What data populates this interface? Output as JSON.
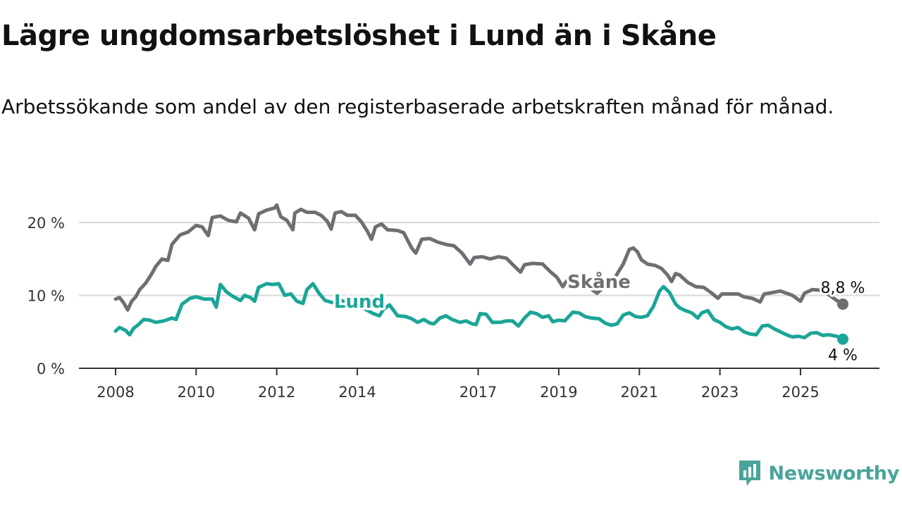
{
  "header": {
    "title": "Lägre ungdomsarbetslöshet i Lund än i Skåne",
    "subtitle": "Arbetssökande som andel av den registerbaserade arbetskraften månad för månad."
  },
  "brand": {
    "name": "Newsworthy",
    "color": "#48a49a"
  },
  "chart_data": {
    "type": "line",
    "title": "Lägre ungdomsarbetslöshet i Lund än i Skåne",
    "subtitle": "Arbetssökande som andel av den registerbaserade arbetskraften månad för månad.",
    "y_unit": "%",
    "ylim": [
      0,
      22.5
    ],
    "y_ticks": [
      0,
      10,
      20
    ],
    "y_tick_labels": [
      "0 %",
      "10 %",
      "20 %"
    ],
    "x_ticks": [
      2008,
      2010,
      2012,
      2014,
      2017,
      2019,
      2021,
      2023,
      2025
    ],
    "x_tick_labels": [
      "2008",
      "2010",
      "2012",
      "2014",
      "2017",
      "2019",
      "2021",
      "2023",
      "2025"
    ],
    "xlim": [
      2007.6,
      2026.2
    ],
    "grid": "horizontal",
    "legend": "inline labels",
    "series": [
      {
        "name": "Skåne",
        "color": "#6f6e73",
        "end_label": "8,8 %",
        "points": [
          [
            2008.0,
            9.5
          ],
          [
            2008.1,
            9.7
          ],
          [
            2008.2,
            9.0
          ],
          [
            2008.3,
            8.0
          ],
          [
            2008.4,
            9.2
          ],
          [
            2008.5,
            9.8
          ],
          [
            2008.6,
            10.8
          ],
          [
            2008.75,
            11.7
          ],
          [
            2008.9,
            13.0
          ],
          [
            2009.0,
            14.0
          ],
          [
            2009.15,
            15.0
          ],
          [
            2009.3,
            14.8
          ],
          [
            2009.4,
            17.0
          ],
          [
            2009.6,
            18.3
          ],
          [
            2009.8,
            18.7
          ],
          [
            2010.0,
            19.6
          ],
          [
            2010.15,
            19.4
          ],
          [
            2010.3,
            18.2
          ],
          [
            2010.4,
            20.7
          ],
          [
            2010.6,
            20.9
          ],
          [
            2010.8,
            20.3
          ],
          [
            2011.0,
            20.1
          ],
          [
            2011.1,
            21.3
          ],
          [
            2011.3,
            20.6
          ],
          [
            2011.45,
            19.0
          ],
          [
            2011.55,
            21.2
          ],
          [
            2011.75,
            21.7
          ],
          [
            2011.95,
            22.0
          ],
          [
            2012.0,
            22.4
          ],
          [
            2012.1,
            20.8
          ],
          [
            2012.25,
            20.3
          ],
          [
            2012.4,
            19.0
          ],
          [
            2012.45,
            21.3
          ],
          [
            2012.6,
            21.8
          ],
          [
            2012.75,
            21.4
          ],
          [
            2012.95,
            21.4
          ],
          [
            2013.1,
            21.0
          ],
          [
            2013.25,
            20.2
          ],
          [
            2013.35,
            19.1
          ],
          [
            2013.45,
            21.3
          ],
          [
            2013.6,
            21.5
          ],
          [
            2013.75,
            21.0
          ],
          [
            2013.95,
            21.0
          ],
          [
            2014.1,
            20.1
          ],
          [
            2014.25,
            18.8
          ],
          [
            2014.35,
            17.7
          ],
          [
            2014.45,
            19.4
          ],
          [
            2014.6,
            19.8
          ],
          [
            2014.75,
            19.0
          ],
          [
            2015.0,
            18.9
          ],
          [
            2015.15,
            18.6
          ],
          [
            2015.35,
            16.5
          ],
          [
            2015.45,
            15.8
          ],
          [
            2015.6,
            17.7
          ],
          [
            2015.8,
            17.8
          ],
          [
            2016.0,
            17.3
          ],
          [
            2016.2,
            17.0
          ],
          [
            2016.4,
            16.8
          ],
          [
            2016.6,
            15.8
          ],
          [
            2016.8,
            14.3
          ],
          [
            2016.9,
            15.2
          ],
          [
            2017.1,
            15.3
          ],
          [
            2017.3,
            15.0
          ],
          [
            2017.5,
            15.3
          ],
          [
            2017.7,
            15.1
          ],
          [
            2017.9,
            14.0
          ],
          [
            2018.05,
            13.2
          ],
          [
            2018.15,
            14.2
          ],
          [
            2018.35,
            14.4
          ],
          [
            2018.6,
            14.3
          ],
          [
            2018.8,
            13.2
          ],
          [
            2018.95,
            12.5
          ],
          [
            2019.1,
            11.2
          ],
          [
            2019.2,
            12.0
          ],
          [
            2019.4,
            12.6
          ],
          [
            2019.55,
            12.0
          ],
          [
            2019.75,
            11.1
          ],
          [
            2019.95,
            10.3
          ],
          [
            2020.2,
            11.5
          ],
          [
            2020.4,
            12.5
          ],
          [
            2020.6,
            14.3
          ],
          [
            2020.75,
            16.3
          ],
          [
            2020.85,
            16.5
          ],
          [
            2020.95,
            16.0
          ],
          [
            2021.05,
            14.9
          ],
          [
            2021.2,
            14.3
          ],
          [
            2021.4,
            14.1
          ],
          [
            2021.55,
            13.7
          ],
          [
            2021.7,
            12.8
          ],
          [
            2021.8,
            11.9
          ],
          [
            2021.9,
            13.0
          ],
          [
            2022.0,
            12.8
          ],
          [
            2022.2,
            11.8
          ],
          [
            2022.4,
            11.2
          ],
          [
            2022.6,
            11.1
          ],
          [
            2022.8,
            10.3
          ],
          [
            2022.95,
            9.6
          ],
          [
            2023.05,
            10.2
          ],
          [
            2023.25,
            10.2
          ],
          [
            2023.45,
            10.2
          ],
          [
            2023.6,
            9.8
          ],
          [
            2023.8,
            9.6
          ],
          [
            2024.0,
            9.1
          ],
          [
            2024.1,
            10.2
          ],
          [
            2024.3,
            10.4
          ],
          [
            2024.5,
            10.6
          ],
          [
            2024.7,
            10.2
          ],
          [
            2024.8,
            10.0
          ],
          [
            2025.0,
            9.2
          ],
          [
            2025.1,
            10.3
          ],
          [
            2025.3,
            10.8
          ],
          [
            2025.5,
            10.7
          ],
          [
            2025.7,
            10.1
          ],
          [
            2025.9,
            9.3
          ],
          [
            2026.05,
            8.8
          ]
        ]
      },
      {
        "name": "Lund",
        "color": "#1ba597",
        "end_label": "4 %",
        "points": [
          [
            2008.0,
            5.1
          ],
          [
            2008.1,
            5.6
          ],
          [
            2008.25,
            5.2
          ],
          [
            2008.35,
            4.6
          ],
          [
            2008.45,
            5.5
          ],
          [
            2008.55,
            5.9
          ],
          [
            2008.7,
            6.7
          ],
          [
            2008.85,
            6.6
          ],
          [
            2009.0,
            6.3
          ],
          [
            2009.2,
            6.5
          ],
          [
            2009.4,
            6.9
          ],
          [
            2009.5,
            6.7
          ],
          [
            2009.65,
            8.8
          ],
          [
            2009.85,
            9.6
          ],
          [
            2010.0,
            9.8
          ],
          [
            2010.2,
            9.5
          ],
          [
            2010.4,
            9.5
          ],
          [
            2010.5,
            8.4
          ],
          [
            2010.6,
            11.5
          ],
          [
            2010.75,
            10.5
          ],
          [
            2010.9,
            9.9
          ],
          [
            2011.1,
            9.3
          ],
          [
            2011.2,
            10.0
          ],
          [
            2011.35,
            9.7
          ],
          [
            2011.45,
            9.2
          ],
          [
            2011.55,
            11.1
          ],
          [
            2011.75,
            11.6
          ],
          [
            2011.9,
            11.5
          ],
          [
            2012.05,
            11.6
          ],
          [
            2012.2,
            10.0
          ],
          [
            2012.35,
            10.2
          ],
          [
            2012.5,
            9.2
          ],
          [
            2012.65,
            8.9
          ],
          [
            2012.75,
            10.8
          ],
          [
            2012.9,
            11.6
          ],
          [
            2013.05,
            10.3
          ],
          [
            2013.2,
            9.3
          ],
          [
            2013.4,
            9.0
          ],
          [
            2013.6,
            9.3
          ],
          [
            2013.8,
            8.9
          ],
          [
            2014.0,
            8.6
          ],
          [
            2014.2,
            8.1
          ],
          [
            2014.4,
            7.5
          ],
          [
            2014.55,
            7.2
          ],
          [
            2014.65,
            8.1
          ],
          [
            2014.8,
            8.7
          ],
          [
            2015.0,
            7.2
          ],
          [
            2015.2,
            7.1
          ],
          [
            2015.35,
            6.8
          ],
          [
            2015.5,
            6.3
          ],
          [
            2015.65,
            6.7
          ],
          [
            2015.8,
            6.2
          ],
          [
            2015.9,
            6.1
          ],
          [
            2016.05,
            6.9
          ],
          [
            2016.2,
            7.2
          ],
          [
            2016.35,
            6.7
          ],
          [
            2016.55,
            6.3
          ],
          [
            2016.7,
            6.5
          ],
          [
            2016.85,
            6.1
          ],
          [
            2016.95,
            6.0
          ],
          [
            2017.05,
            7.5
          ],
          [
            2017.2,
            7.4
          ],
          [
            2017.35,
            6.3
          ],
          [
            2017.55,
            6.3
          ],
          [
            2017.7,
            6.5
          ],
          [
            2017.85,
            6.5
          ],
          [
            2018.0,
            5.8
          ],
          [
            2018.15,
            6.9
          ],
          [
            2018.3,
            7.7
          ],
          [
            2018.45,
            7.5
          ],
          [
            2018.6,
            7.0
          ],
          [
            2018.75,
            7.2
          ],
          [
            2018.85,
            6.4
          ],
          [
            2019.0,
            6.6
          ],
          [
            2019.15,
            6.5
          ],
          [
            2019.35,
            7.7
          ],
          [
            2019.5,
            7.6
          ],
          [
            2019.65,
            7.1
          ],
          [
            2019.8,
            6.9
          ],
          [
            2020.0,
            6.8
          ],
          [
            2020.15,
            6.2
          ],
          [
            2020.3,
            5.9
          ],
          [
            2020.45,
            6.1
          ],
          [
            2020.6,
            7.3
          ],
          [
            2020.75,
            7.6
          ],
          [
            2020.9,
            7.1
          ],
          [
            2021.05,
            7.0
          ],
          [
            2021.2,
            7.2
          ],
          [
            2021.35,
            8.5
          ],
          [
            2021.5,
            10.6
          ],
          [
            2021.6,
            11.2
          ],
          [
            2021.75,
            10.4
          ],
          [
            2021.9,
            8.8
          ],
          [
            2022.0,
            8.3
          ],
          [
            2022.15,
            7.9
          ],
          [
            2022.3,
            7.6
          ],
          [
            2022.45,
            6.9
          ],
          [
            2022.55,
            7.6
          ],
          [
            2022.7,
            7.9
          ],
          [
            2022.85,
            6.7
          ],
          [
            2023.0,
            6.3
          ],
          [
            2023.15,
            5.7
          ],
          [
            2023.3,
            5.4
          ],
          [
            2023.45,
            5.6
          ],
          [
            2023.6,
            5.0
          ],
          [
            2023.75,
            4.7
          ],
          [
            2023.9,
            4.6
          ],
          [
            2024.05,
            5.8
          ],
          [
            2024.2,
            5.9
          ],
          [
            2024.35,
            5.4
          ],
          [
            2024.5,
            5.0
          ],
          [
            2024.65,
            4.6
          ],
          [
            2024.8,
            4.3
          ],
          [
            2024.95,
            4.4
          ],
          [
            2025.1,
            4.2
          ],
          [
            2025.25,
            4.8
          ],
          [
            2025.4,
            4.9
          ],
          [
            2025.55,
            4.5
          ],
          [
            2025.7,
            4.6
          ],
          [
            2025.9,
            4.4
          ],
          [
            2026.05,
            4.0
          ]
        ]
      }
    ]
  }
}
